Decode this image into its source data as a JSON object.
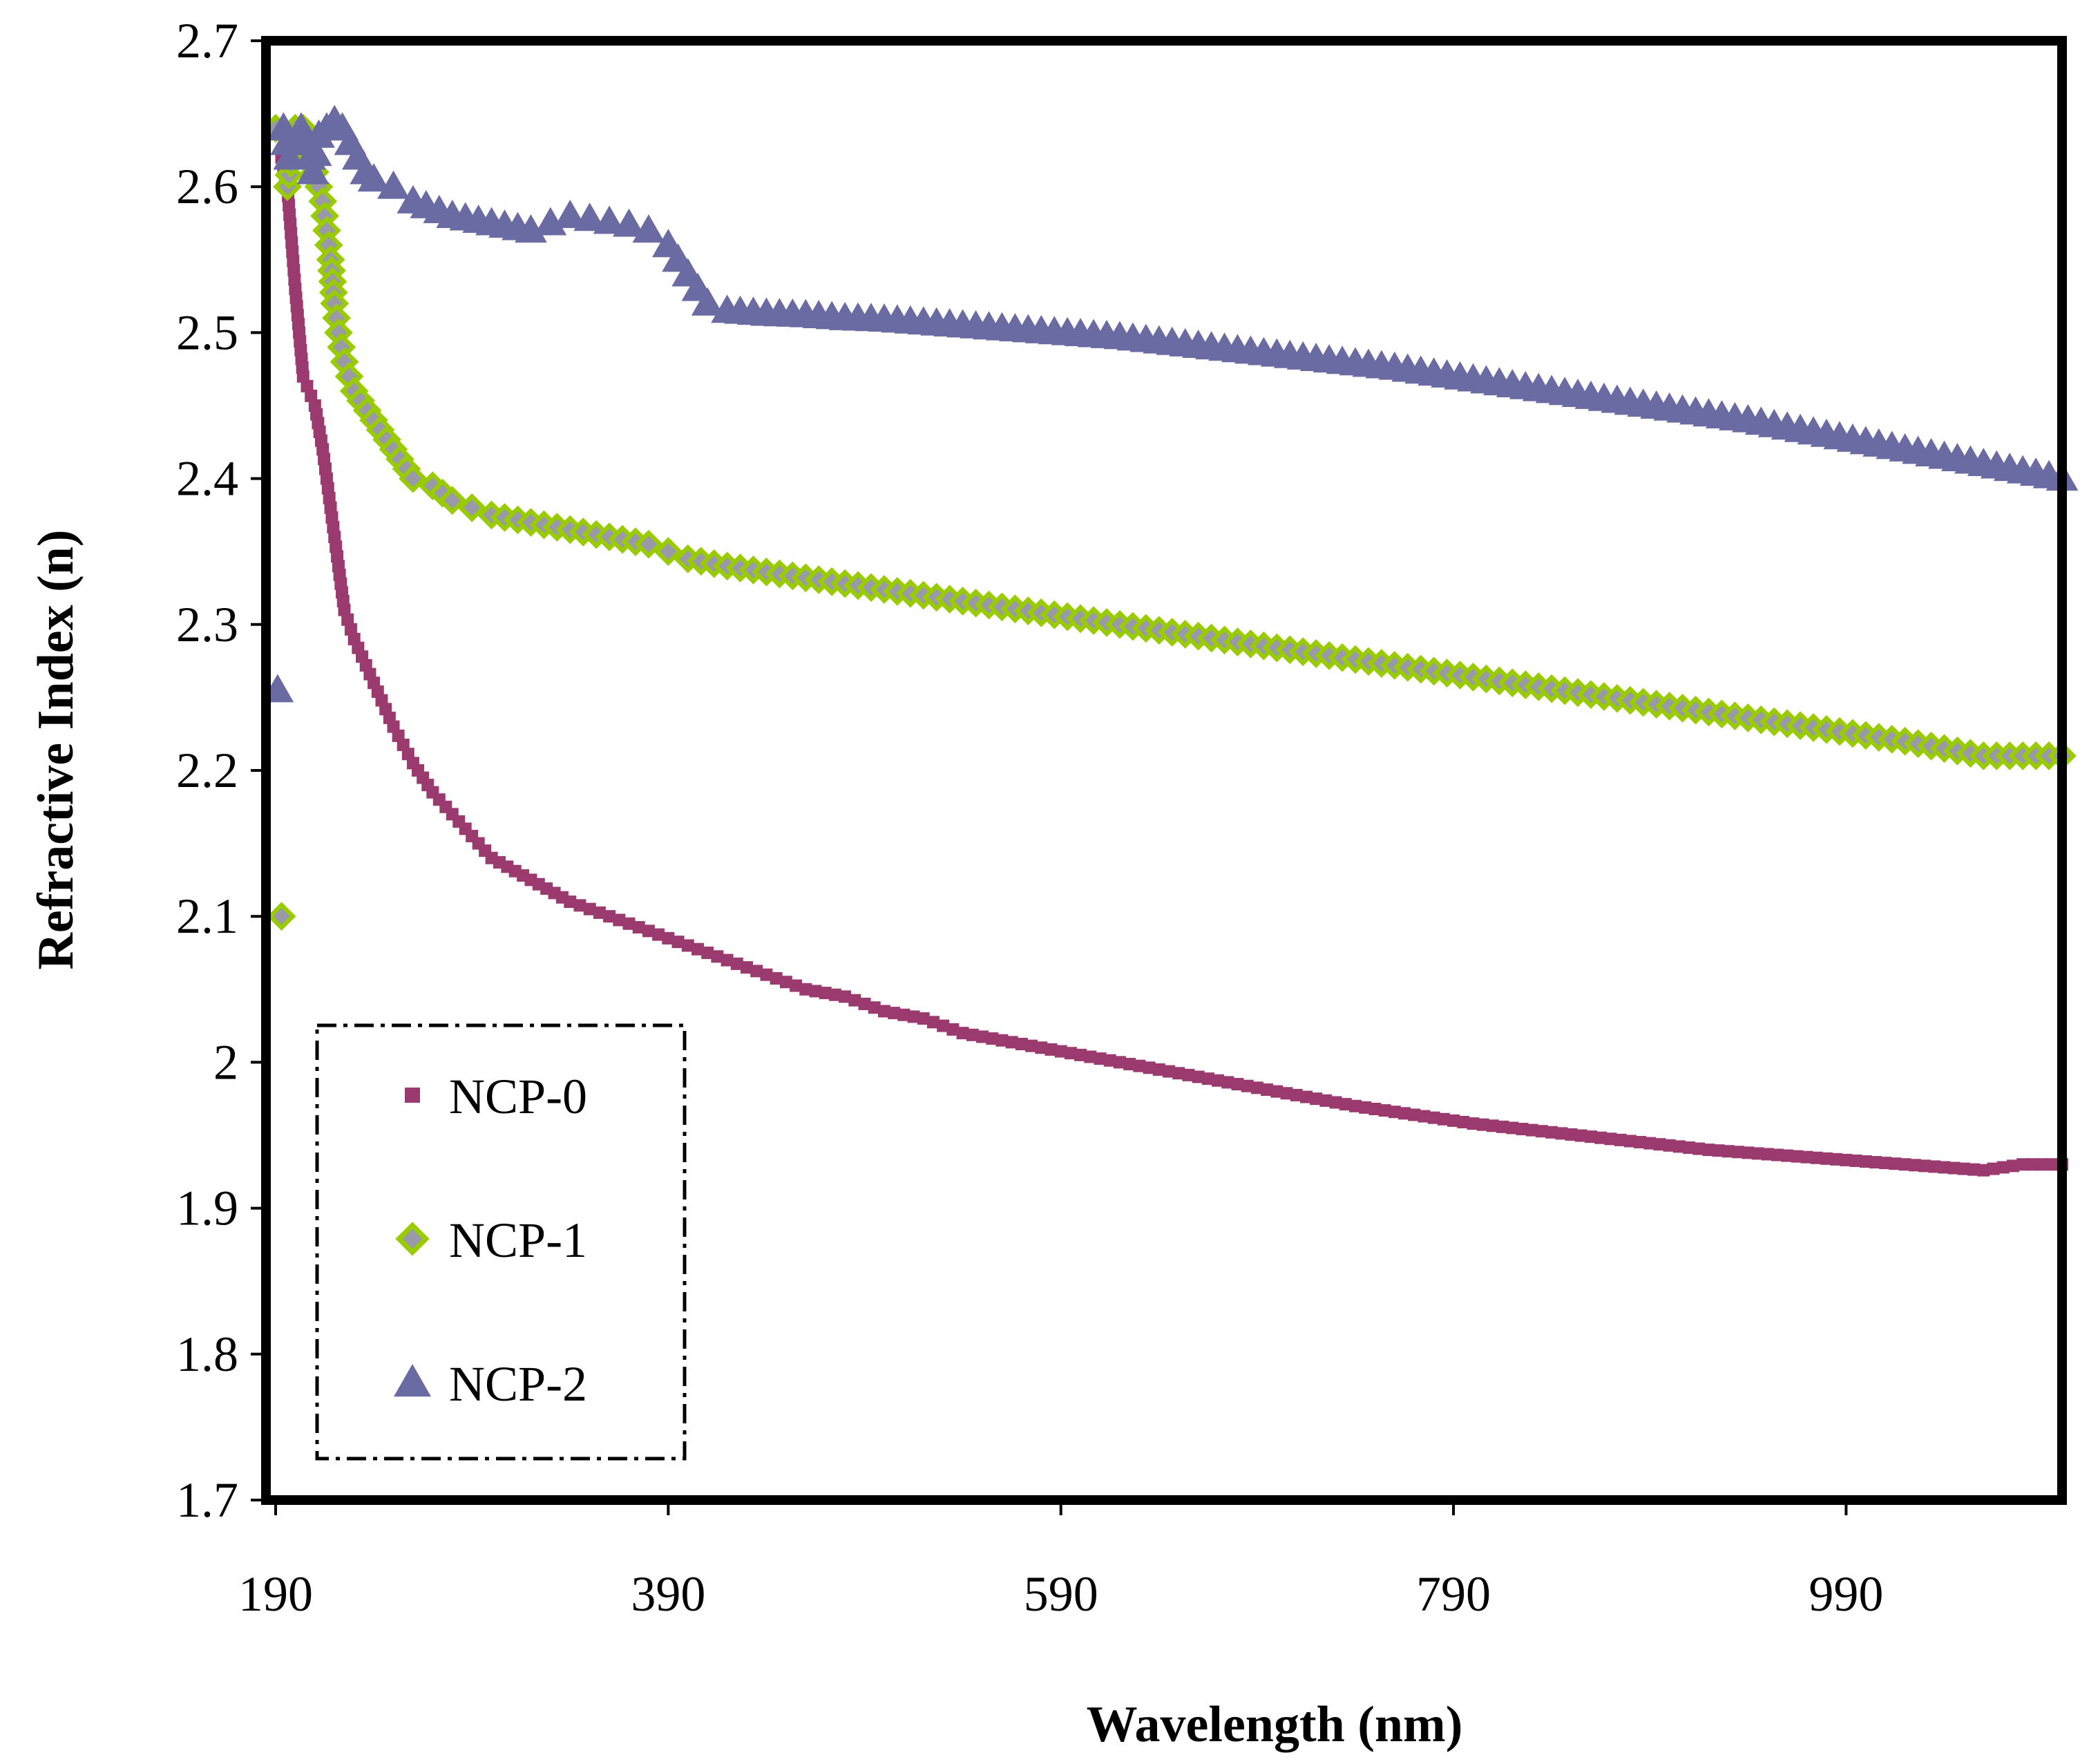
{
  "chart_data": {
    "type": "scatter",
    "title": "",
    "xlabel": "Wavelength (nm)",
    "ylabel": "Refractive Index (n)",
    "xlim": [
      190,
      1100
    ],
    "ylim": [
      1.7,
      2.7
    ],
    "xticks": [
      190,
      390,
      590,
      790,
      990
    ],
    "xtick_labels": [
      "190",
      "390",
      "590",
      "790",
      "990"
    ],
    "yticks": [
      1.7,
      1.8,
      1.9,
      2.0,
      2.1,
      2.2,
      2.3,
      2.4,
      2.5,
      2.6,
      2.7
    ],
    "ytick_labels": [
      "1.7",
      "1.8",
      "1.9",
      "2",
      "2.1",
      "2.2",
      "2.3",
      "2.4",
      "2.5",
      "2.6",
      "2.7"
    ],
    "grid": false,
    "legend_position": "bottom-left",
    "series": [
      {
        "name": "NCP-0",
        "marker": "square",
        "color": "#9B3A6E",
        "x": [
          193,
          196,
          200,
          204,
          210,
          214,
          216,
          218,
          220,
          222,
          225,
          230,
          240,
          250,
          260,
          270,
          280,
          290,
          300,
          320,
          340,
          360,
          380,
          390,
          400,
          420,
          440,
          460,
          480,
          500,
          520,
          540,
          560,
          580,
          600,
          620,
          640,
          660,
          680,
          700,
          720,
          740,
          760,
          780,
          800,
          820,
          840,
          860,
          880,
          900,
          920,
          940,
          960,
          980,
          1000,
          1020,
          1040,
          1060,
          1080,
          1100
        ],
        "y": [
          2.62,
          2.6,
          2.53,
          2.47,
          2.45,
          2.42,
          2.4,
          2.38,
          2.36,
          2.34,
          2.31,
          2.29,
          2.26,
          2.23,
          2.205,
          2.185,
          2.17,
          2.155,
          2.14,
          2.125,
          2.11,
          2.1,
          2.09,
          2.085,
          2.08,
          2.07,
          2.06,
          2.05,
          2.045,
          2.035,
          2.03,
          2.02,
          2.015,
          2.01,
          2.005,
          2.0,
          1.995,
          1.99,
          1.985,
          1.98,
          1.975,
          1.97,
          1.966,
          1.962,
          1.958,
          1.955,
          1.952,
          1.949,
          1.946,
          1.943,
          1.94,
          1.938,
          1.936,
          1.934,
          1.932,
          1.93,
          1.928,
          1.926,
          1.93,
          1.93
        ]
      },
      {
        "name": "NCP-1",
        "marker": "diamond",
        "color": "#99CC00",
        "x": [
          190,
          193,
          196,
          200,
          204,
          208,
          212,
          214,
          216,
          218,
          220,
          222,
          225,
          230,
          240,
          250,
          260,
          270,
          280,
          290,
          300,
          320,
          340,
          360,
          380,
          390,
          400,
          420,
          440,
          460,
          480,
          500,
          520,
          540,
          560,
          580,
          600,
          620,
          640,
          660,
          680,
          700,
          720,
          740,
          760,
          780,
          800,
          820,
          840,
          860,
          880,
          900,
          920,
          940,
          960,
          980,
          1000,
          1020,
          1040,
          1060,
          1080,
          1100
        ],
        "y": [
          2.64,
          2.1,
          2.6,
          2.64,
          2.64,
          2.62,
          2.6,
          2.59,
          2.57,
          2.55,
          2.52,
          2.5,
          2.48,
          2.46,
          2.44,
          2.42,
          2.4,
          2.395,
          2.385,
          2.38,
          2.375,
          2.37,
          2.365,
          2.36,
          2.355,
          2.35,
          2.345,
          2.34,
          2.336,
          2.332,
          2.328,
          2.324,
          2.32,
          2.316,
          2.312,
          2.308,
          2.304,
          2.3,
          2.296,
          2.292,
          2.288,
          2.284,
          2.28,
          2.276,
          2.272,
          2.268,
          2.264,
          2.26,
          2.256,
          2.252,
          2.248,
          2.244,
          2.24,
          2.236,
          2.232,
          2.228,
          2.224,
          2.22,
          2.215,
          2.21,
          2.21,
          2.21
        ]
      },
      {
        "name": "NCP-2",
        "marker": "triangle",
        "color": "#6B6BA3",
        "x": [
          191,
          194,
          197,
          200,
          203,
          206,
          209,
          212,
          216,
          220,
          224,
          228,
          232,
          236,
          240,
          250,
          260,
          280,
          300,
          320,
          330,
          340,
          350,
          360,
          370,
          380,
          390,
          395,
          400,
          405,
          410,
          420,
          440,
          460,
          480,
          500,
          520,
          540,
          560,
          580,
          600,
          620,
          640,
          660,
          680,
          700,
          720,
          740,
          760,
          780,
          800,
          820,
          840,
          860,
          880,
          900,
          920,
          940,
          960,
          980,
          1000,
          1020,
          1040,
          1060,
          1080,
          1100
        ],
        "y": [
          2.255,
          2.64,
          2.62,
          2.63,
          2.64,
          2.63,
          2.61,
          2.635,
          2.64,
          2.645,
          2.64,
          2.63,
          2.62,
          2.61,
          2.605,
          2.6,
          2.59,
          2.58,
          2.575,
          2.57,
          2.575,
          2.58,
          2.578,
          2.576,
          2.574,
          2.57,
          2.56,
          2.55,
          2.54,
          2.53,
          2.52,
          2.515,
          2.513,
          2.512,
          2.51,
          2.509,
          2.507,
          2.505,
          2.503,
          2.501,
          2.499,
          2.497,
          2.494,
          2.491,
          2.488,
          2.485,
          2.482,
          2.479,
          2.476,
          2.472,
          2.468,
          2.464,
          2.46,
          2.456,
          2.452,
          2.448,
          2.444,
          2.44,
          2.435,
          2.43,
          2.425,
          2.42,
          2.415,
          2.41,
          2.405,
          2.4
        ]
      }
    ]
  }
}
